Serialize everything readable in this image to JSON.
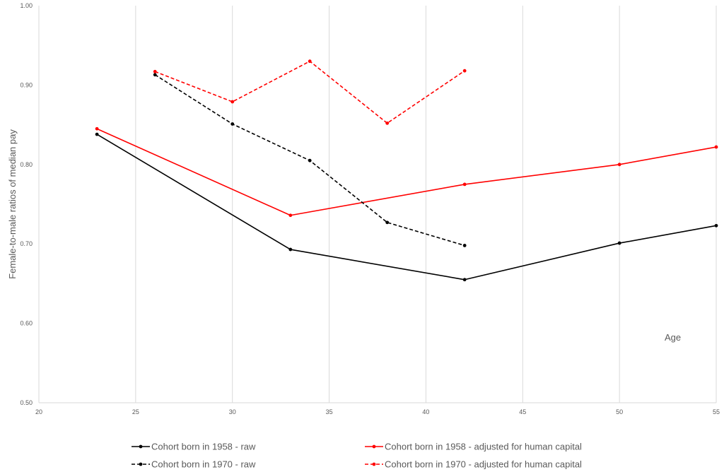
{
  "chart_data": {
    "type": "line",
    "title": "",
    "ylabel": "Female-to-male ratios of median pay",
    "xlabel": "Age",
    "xlim": [
      20,
      55
    ],
    "ylim": [
      0.5,
      1.0
    ],
    "x_ticks": [
      "20",
      "25",
      "30",
      "35",
      "40",
      "45",
      "50",
      "55"
    ],
    "y_ticks": [
      "0.50",
      "0.60",
      "0.70",
      "0.80",
      "0.90",
      "1.00"
    ],
    "grid": "vertical",
    "legend_position": "bottom",
    "series": [
      {
        "name": "Cohort born in 1958 - raw",
        "color": "#000000",
        "dashed": false,
        "points": [
          [
            23,
            0.838
          ],
          [
            33,
            0.693
          ],
          [
            42,
            0.655
          ],
          [
            50,
            0.701
          ],
          [
            55,
            0.723
          ]
        ]
      },
      {
        "name": "Cohort born in 1958 - adjusted for human capital",
        "color": "#ff0000",
        "dashed": false,
        "points": [
          [
            23,
            0.845
          ],
          [
            33,
            0.736
          ],
          [
            42,
            0.775
          ],
          [
            50,
            0.8
          ],
          [
            55,
            0.822
          ]
        ]
      },
      {
        "name": "Cohort born in 1970 - raw",
        "color": "#000000",
        "dashed": true,
        "points": [
          [
            26,
            0.913
          ],
          [
            30,
            0.851
          ],
          [
            34,
            0.805
          ],
          [
            38,
            0.727
          ],
          [
            42,
            0.698
          ]
        ]
      },
      {
        "name": "Cohort born in 1970 - adjusted for human capital",
        "color": "#ff0000",
        "dashed": true,
        "points": [
          [
            26,
            0.917
          ],
          [
            30,
            0.879
          ],
          [
            34,
            0.93
          ],
          [
            38,
            0.852
          ],
          [
            42,
            0.918
          ]
        ]
      }
    ]
  }
}
